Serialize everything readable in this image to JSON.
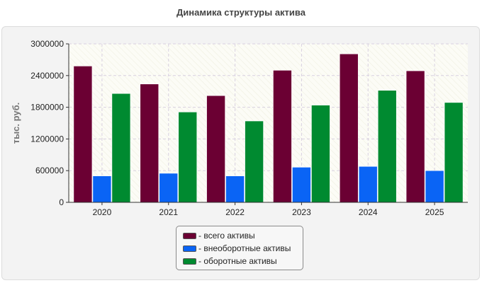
{
  "chart_data": {
    "type": "bar",
    "title": "Динамика структуры актива",
    "ylabel": "тыс. руб.",
    "xlabel": "",
    "categories": [
      "2020",
      "2021",
      "2022",
      "2023",
      "2024",
      "2025"
    ],
    "ylim": [
      0,
      3000000
    ],
    "yticks": [
      "0",
      "600000",
      "1200000",
      "1800000",
      "2400000",
      "3000000"
    ],
    "grid": true,
    "legend_position": "bottom",
    "series": [
      {
        "name": "- всего активы",
        "color": "#6b0033",
        "values": [
          2580000,
          2240000,
          2020000,
          2500000,
          2810000,
          2490000
        ]
      },
      {
        "name": "- внеоборотные активы",
        "color": "#0a64f5",
        "values": [
          500000,
          550000,
          500000,
          665000,
          680000,
          600000
        ]
      },
      {
        "name": "- оборотные активы",
        "color": "#008a30",
        "values": [
          2060000,
          1710000,
          1540000,
          1840000,
          2120000,
          1890000
        ]
      }
    ]
  }
}
